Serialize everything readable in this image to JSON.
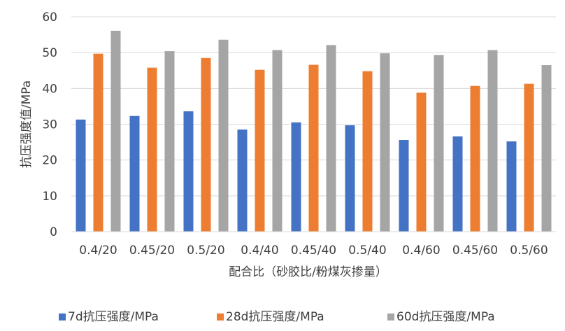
{
  "chart_data": {
    "type": "bar",
    "title": "",
    "xlabel": "配合比（砂胶比/粉煤灰掺量）",
    "ylabel": "抗压强度值/MPa",
    "ylim": [
      0,
      60
    ],
    "yticks": [
      0,
      10,
      20,
      30,
      40,
      50,
      60
    ],
    "grid": true,
    "legend_position": "bottom",
    "categories": [
      "0.4/20",
      "0.45/20",
      "0.5/20",
      "0.4/40",
      "0.45/40",
      "0.5/40",
      "0.4/60",
      "0.45/60",
      "0.5/60"
    ],
    "series": [
      {
        "name": "7d抗压强度/MPa",
        "color": "#4472C4",
        "values": [
          31.3,
          32.3,
          33.6,
          28.5,
          30.5,
          29.7,
          25.6,
          26.6,
          25.2
        ]
      },
      {
        "name": "28d抗压强度/MPa",
        "color": "#ED7D31",
        "values": [
          49.7,
          45.8,
          48.5,
          45.2,
          46.6,
          44.8,
          38.8,
          40.7,
          41.3
        ]
      },
      {
        "name": "60d抗压强度/MPa",
        "color": "#A5A5A5",
        "values": [
          56.1,
          50.4,
          53.6,
          50.7,
          52.1,
          49.8,
          49.3,
          50.7,
          46.5
        ]
      }
    ]
  }
}
